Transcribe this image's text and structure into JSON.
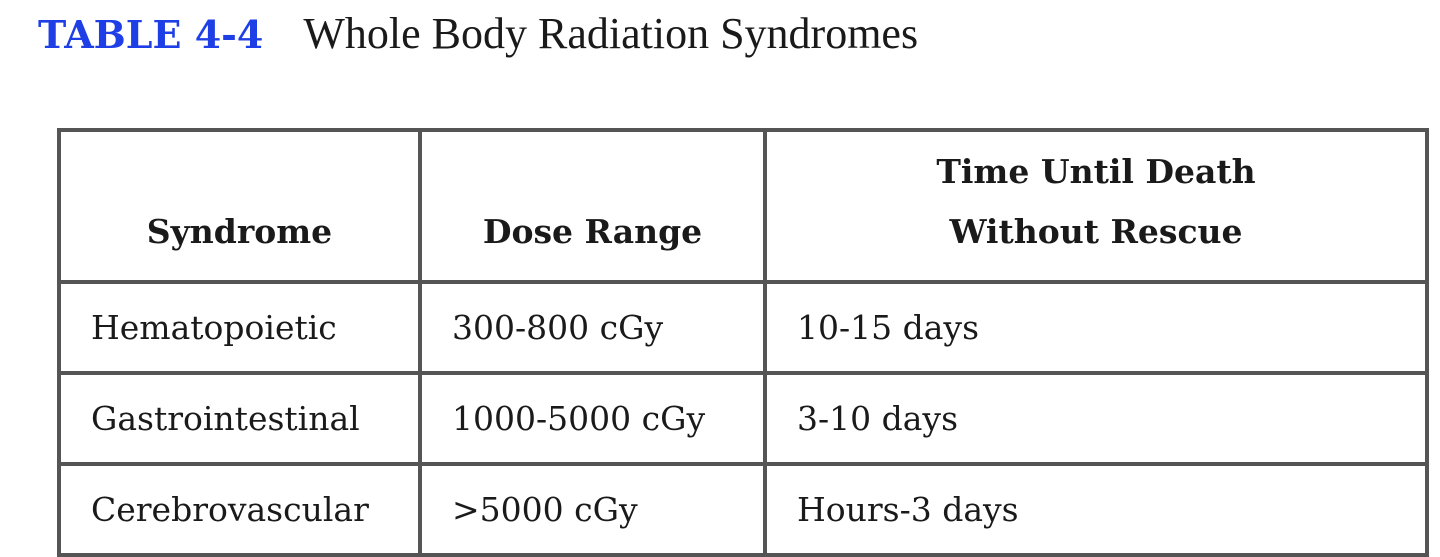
{
  "table_label": "TABLE 4-4",
  "title": "Whole Body Radiation Syndromes",
  "table": {
    "headers": [
      "Syndrome",
      "Dose Range",
      "Time Until Death Without Rescue"
    ],
    "rows": [
      [
        "Hematopoietic",
        "300-800 cGy",
        "10-15 days"
      ],
      [
        "Gastrointestinal",
        "1000-5000 cGy",
        "3-10 days"
      ],
      [
        "Cerebrovascular",
        ">5000 cGy",
        "Hours-3 days"
      ]
    ]
  }
}
